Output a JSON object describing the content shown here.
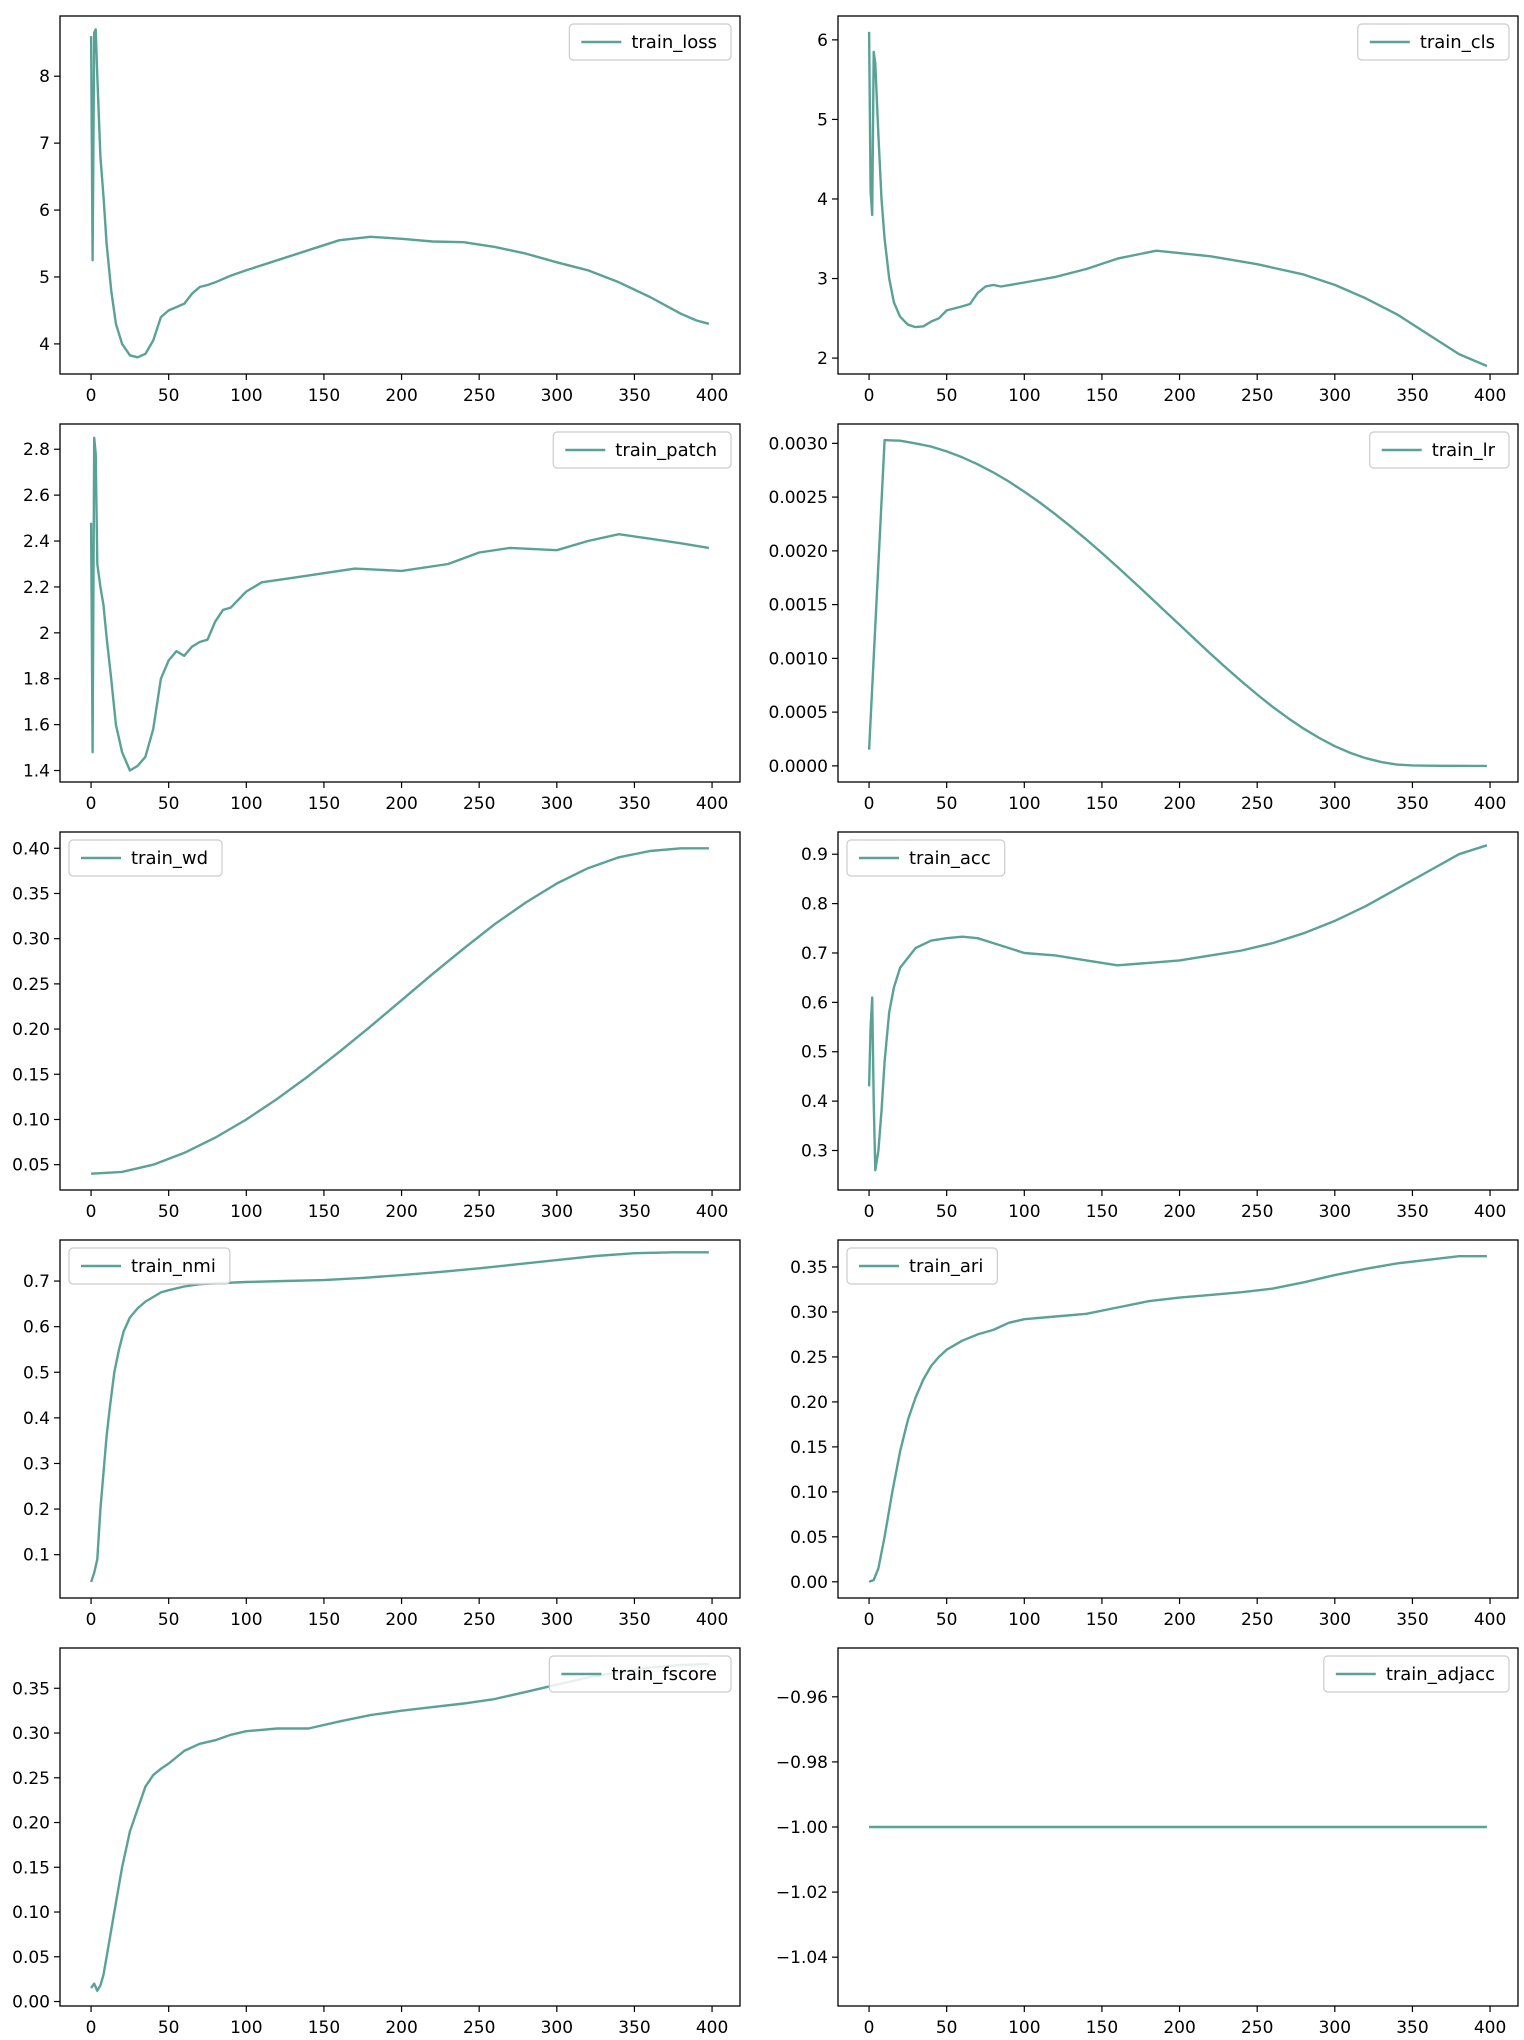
{
  "chart_data": [
    {
      "type": "line",
      "series": [
        {
          "name": "train_loss",
          "x": [
            0,
            1,
            2,
            3,
            4,
            6,
            8,
            10,
            13,
            16,
            20,
            25,
            30,
            35,
            40,
            45,
            50,
            55,
            60,
            65,
            70,
            75,
            80,
            90,
            100,
            120,
            140,
            160,
            180,
            200,
            220,
            240,
            260,
            280,
            300,
            320,
            340,
            360,
            380,
            390,
            398
          ],
          "y": [
            8.6,
            5.25,
            8.65,
            8.7,
            8.0,
            6.8,
            6.2,
            5.5,
            4.8,
            4.3,
            4.0,
            3.83,
            3.8,
            3.85,
            4.05,
            4.4,
            4.5,
            4.55,
            4.6,
            4.75,
            4.85,
            4.88,
            4.92,
            5.02,
            5.1,
            5.25,
            5.4,
            5.55,
            5.6,
            5.57,
            5.53,
            5.52,
            5.45,
            5.35,
            5.22,
            5.1,
            4.92,
            4.7,
            4.45,
            4.35,
            4.3
          ]
        }
      ],
      "xlim": [
        -20,
        418
      ],
      "ylim": [
        3.55,
        8.9
      ],
      "xticks": [
        0,
        50,
        100,
        150,
        200,
        250,
        300,
        350,
        400
      ],
      "yticks": [
        4,
        5,
        6,
        7,
        8
      ],
      "legend_loc": "upper right"
    },
    {
      "type": "line",
      "series": [
        {
          "name": "train_cls",
          "x": [
            0,
            1,
            2,
            3,
            4,
            6,
            8,
            10,
            13,
            16,
            20,
            25,
            30,
            35,
            40,
            45,
            50,
            60,
            65,
            70,
            75,
            80,
            85,
            100,
            120,
            140,
            160,
            185,
            200,
            220,
            250,
            280,
            300,
            320,
            340,
            360,
            380,
            398
          ],
          "y": [
            6.1,
            4.1,
            3.8,
            5.85,
            5.7,
            4.8,
            4.0,
            3.5,
            3.0,
            2.7,
            2.52,
            2.42,
            2.39,
            2.4,
            2.46,
            2.5,
            2.6,
            2.65,
            2.68,
            2.82,
            2.9,
            2.92,
            2.9,
            2.95,
            3.02,
            3.12,
            3.25,
            3.35,
            3.32,
            3.28,
            3.18,
            3.05,
            2.92,
            2.75,
            2.55,
            2.3,
            2.05,
            1.9
          ]
        }
      ],
      "xlim": [
        -20,
        418
      ],
      "ylim": [
        1.8,
        6.3
      ],
      "xticks": [
        0,
        50,
        100,
        150,
        200,
        250,
        300,
        350,
        400
      ],
      "yticks": [
        2,
        3,
        4,
        5,
        6
      ],
      "legend_loc": "upper right"
    },
    {
      "type": "line",
      "series": [
        {
          "name": "train_patch",
          "x": [
            0,
            1,
            2,
            3,
            4,
            6,
            8,
            10,
            13,
            16,
            20,
            25,
            30,
            35,
            40,
            45,
            50,
            55,
            60,
            65,
            70,
            75,
            80,
            85,
            90,
            100,
            110,
            130,
            150,
            170,
            200,
            230,
            250,
            270,
            300,
            320,
            340,
            360,
            380,
            398
          ],
          "y": [
            2.48,
            1.48,
            2.85,
            2.78,
            2.3,
            2.2,
            2.12,
            1.98,
            1.8,
            1.6,
            1.48,
            1.4,
            1.42,
            1.46,
            1.58,
            1.8,
            1.88,
            1.92,
            1.9,
            1.94,
            1.96,
            1.97,
            2.05,
            2.1,
            2.11,
            2.18,
            2.22,
            2.24,
            2.26,
            2.28,
            2.27,
            2.3,
            2.35,
            2.37,
            2.36,
            2.4,
            2.43,
            2.41,
            2.39,
            2.37
          ]
        }
      ],
      "xlim": [
        -20,
        418
      ],
      "ylim": [
        1.35,
        2.91
      ],
      "xticks": [
        0,
        50,
        100,
        150,
        200,
        250,
        300,
        350,
        400
      ],
      "yticks": [
        1.4,
        1.6,
        1.8,
        2.0,
        2.2,
        2.4,
        2.6,
        2.8
      ],
      "legend_loc": "upper right"
    },
    {
      "type": "line",
      "series": [
        {
          "name": "train_lr",
          "x": [
            0,
            10,
            20,
            30,
            40,
            50,
            60,
            70,
            80,
            90,
            100,
            110,
            120,
            130,
            140,
            150,
            160,
            170,
            180,
            190,
            200,
            210,
            220,
            230,
            240,
            250,
            260,
            270,
            280,
            290,
            300,
            310,
            320,
            330,
            340,
            350,
            360,
            370,
            380,
            390,
            398
          ],
          "y": [
            0.00015,
            0.00303,
            0.003025,
            0.003,
            0.00297,
            0.002925,
            0.00287,
            0.002805,
            0.00273,
            0.002645,
            0.00255,
            0.00245,
            0.00234,
            0.002225,
            0.002105,
            0.00198,
            0.00185,
            0.001718,
            0.001584,
            0.001448,
            0.001312,
            0.001176,
            0.001042,
            0.000911,
            0.000785,
            0.000664,
            0.000549,
            0.000443,
            0.000346,
            0.000259,
            0.000183,
            0.000121,
            7.1e-05,
            3.5e-05,
            1.2e-05,
            4e-06,
            2e-06,
            1e-06,
            1e-06,
            0.0,
            0.0
          ]
        }
      ],
      "xlim": [
        -20,
        418
      ],
      "ylim": [
        -0.00015,
        0.00318
      ],
      "xticks": [
        0,
        50,
        100,
        150,
        200,
        250,
        300,
        350,
        400
      ],
      "yticks": [
        0.0,
        0.0005,
        0.001,
        0.0015,
        0.002,
        0.0025,
        0.003
      ],
      "yticklabels": [
        "0.0000",
        "0.0005",
        "0.0010",
        "0.0015",
        "0.0020",
        "0.0025",
        "0.0030"
      ],
      "legend_loc": "upper right"
    },
    {
      "type": "line",
      "series": [
        {
          "name": "train_wd",
          "x": [
            0,
            20,
            40,
            60,
            80,
            100,
            120,
            140,
            160,
            180,
            200,
            220,
            240,
            260,
            280,
            300,
            320,
            340,
            360,
            380,
            398
          ],
          "y": [
            0.04,
            0.042,
            0.05,
            0.063,
            0.08,
            0.1,
            0.123,
            0.148,
            0.175,
            0.203,
            0.232,
            0.261,
            0.289,
            0.316,
            0.34,
            0.361,
            0.378,
            0.39,
            0.397,
            0.4,
            0.4
          ]
        }
      ],
      "xlim": [
        -20,
        418
      ],
      "ylim": [
        0.022,
        0.418
      ],
      "xticks": [
        0,
        50,
        100,
        150,
        200,
        250,
        300,
        350,
        400
      ],
      "yticks": [
        0.05,
        0.1,
        0.15,
        0.2,
        0.25,
        0.3,
        0.35,
        0.4
      ],
      "yticklabels": [
        "0.05",
        "0.10",
        "0.15",
        "0.20",
        "0.25",
        "0.30",
        "0.35",
        "0.40"
      ],
      "legend_loc": "upper left"
    },
    {
      "type": "line",
      "series": [
        {
          "name": "train_acc",
          "x": [
            0,
            1,
            2,
            3,
            4,
            6,
            8,
            10,
            13,
            16,
            20,
            25,
            30,
            40,
            50,
            60,
            70,
            80,
            90,
            100,
            120,
            140,
            160,
            180,
            200,
            220,
            240,
            260,
            280,
            300,
            320,
            340,
            360,
            380,
            398
          ],
          "y": [
            0.43,
            0.55,
            0.61,
            0.4,
            0.26,
            0.3,
            0.38,
            0.48,
            0.58,
            0.63,
            0.67,
            0.69,
            0.71,
            0.725,
            0.73,
            0.733,
            0.73,
            0.72,
            0.71,
            0.7,
            0.695,
            0.685,
            0.675,
            0.68,
            0.685,
            0.695,
            0.705,
            0.72,
            0.74,
            0.765,
            0.795,
            0.83,
            0.865,
            0.9,
            0.918
          ]
        }
      ],
      "xlim": [
        -20,
        418
      ],
      "ylim": [
        0.22,
        0.945
      ],
      "xticks": [
        0,
        50,
        100,
        150,
        200,
        250,
        300,
        350,
        400
      ],
      "yticks": [
        0.3,
        0.4,
        0.5,
        0.6,
        0.7,
        0.8,
        0.9
      ],
      "legend_loc": "upper left"
    },
    {
      "type": "line",
      "series": [
        {
          "name": "train_nmi",
          "x": [
            0,
            2,
            4,
            6,
            8,
            10,
            12,
            15,
            18,
            21,
            25,
            30,
            35,
            40,
            45,
            50,
            60,
            70,
            80,
            100,
            125,
            150,
            175,
            200,
            225,
            250,
            275,
            300,
            325,
            350,
            375,
            398
          ],
          "y": [
            0.04,
            0.06,
            0.09,
            0.2,
            0.28,
            0.36,
            0.42,
            0.5,
            0.55,
            0.59,
            0.62,
            0.64,
            0.655,
            0.665,
            0.675,
            0.68,
            0.688,
            0.693,
            0.695,
            0.698,
            0.7,
            0.702,
            0.707,
            0.713,
            0.72,
            0.728,
            0.737,
            0.746,
            0.755,
            0.761,
            0.763,
            0.763
          ]
        }
      ],
      "xlim": [
        -20,
        418
      ],
      "ylim": [
        0.005,
        0.79
      ],
      "xticks": [
        0,
        50,
        100,
        150,
        200,
        250,
        300,
        350,
        400
      ],
      "yticks": [
        0.1,
        0.2,
        0.3,
        0.4,
        0.5,
        0.6,
        0.7
      ],
      "legend_loc": "upper left"
    },
    {
      "type": "line",
      "series": [
        {
          "name": "train_ari",
          "x": [
            0,
            3,
            6,
            10,
            15,
            20,
            25,
            30,
            35,
            40,
            45,
            50,
            60,
            70,
            80,
            90,
            100,
            120,
            140,
            160,
            180,
            200,
            220,
            240,
            260,
            280,
            300,
            320,
            340,
            360,
            380,
            398
          ],
          "y": [
            0.0,
            0.002,
            0.015,
            0.05,
            0.1,
            0.145,
            0.18,
            0.205,
            0.225,
            0.24,
            0.25,
            0.258,
            0.268,
            0.275,
            0.28,
            0.288,
            0.292,
            0.295,
            0.298,
            0.305,
            0.312,
            0.316,
            0.319,
            0.322,
            0.326,
            0.333,
            0.341,
            0.348,
            0.354,
            0.358,
            0.362,
            0.362
          ]
        }
      ],
      "xlim": [
        -20,
        418
      ],
      "ylim": [
        -0.018,
        0.38
      ],
      "xticks": [
        0,
        50,
        100,
        150,
        200,
        250,
        300,
        350,
        400
      ],
      "yticks": [
        0.0,
        0.05,
        0.1,
        0.15,
        0.2,
        0.25,
        0.3,
        0.35
      ],
      "yticklabels": [
        "0.00",
        "0.05",
        "0.10",
        "0.15",
        "0.20",
        "0.25",
        "0.30",
        "0.35"
      ],
      "legend_loc": "upper left"
    },
    {
      "type": "line",
      "series": [
        {
          "name": "train_fscore",
          "x": [
            0,
            2,
            4,
            6,
            8,
            10,
            12,
            15,
            20,
            25,
            30,
            35,
            40,
            45,
            50,
            60,
            70,
            80,
            90,
            100,
            120,
            140,
            160,
            180,
            200,
            220,
            240,
            260,
            280,
            300,
            320,
            340,
            360,
            380,
            398
          ],
          "y": [
            0.015,
            0.02,
            0.012,
            0.018,
            0.03,
            0.05,
            0.07,
            0.1,
            0.15,
            0.19,
            0.215,
            0.24,
            0.253,
            0.26,
            0.266,
            0.28,
            0.288,
            0.292,
            0.298,
            0.302,
            0.305,
            0.305,
            0.313,
            0.32,
            0.325,
            0.329,
            0.333,
            0.338,
            0.346,
            0.354,
            0.362,
            0.368,
            0.373,
            0.376,
            0.377
          ]
        }
      ],
      "xlim": [
        -20,
        418
      ],
      "ylim": [
        -0.005,
        0.395
      ],
      "xticks": [
        0,
        50,
        100,
        150,
        200,
        250,
        300,
        350,
        400
      ],
      "yticks": [
        0.0,
        0.05,
        0.1,
        0.15,
        0.2,
        0.25,
        0.3,
        0.35
      ],
      "yticklabels": [
        "0.00",
        "0.05",
        "0.10",
        "0.15",
        "0.20",
        "0.25",
        "0.30",
        "0.35"
      ],
      "legend_loc": "upper right"
    },
    {
      "type": "line",
      "series": [
        {
          "name": "train_adjacc",
          "x": [
            0,
            398
          ],
          "y": [
            -1.0,
            -1.0
          ]
        }
      ],
      "xlim": [
        -20,
        418
      ],
      "ylim": [
        -1.055,
        -0.945
      ],
      "xticks": [
        0,
        50,
        100,
        150,
        200,
        250,
        300,
        350,
        400
      ],
      "yticks": [
        -1.04,
        -1.02,
        -1.0,
        -0.98,
        -0.96
      ],
      "yticklabels": [
        "−1.04",
        "−1.02",
        "−1.00",
        "−0.98",
        "−0.96"
      ],
      "legend_loc": "upper right"
    }
  ],
  "colors": {
    "line": "#5aa296",
    "axis": "#000000",
    "legend_border": "#cccccc",
    "background": "#ffffff"
  }
}
